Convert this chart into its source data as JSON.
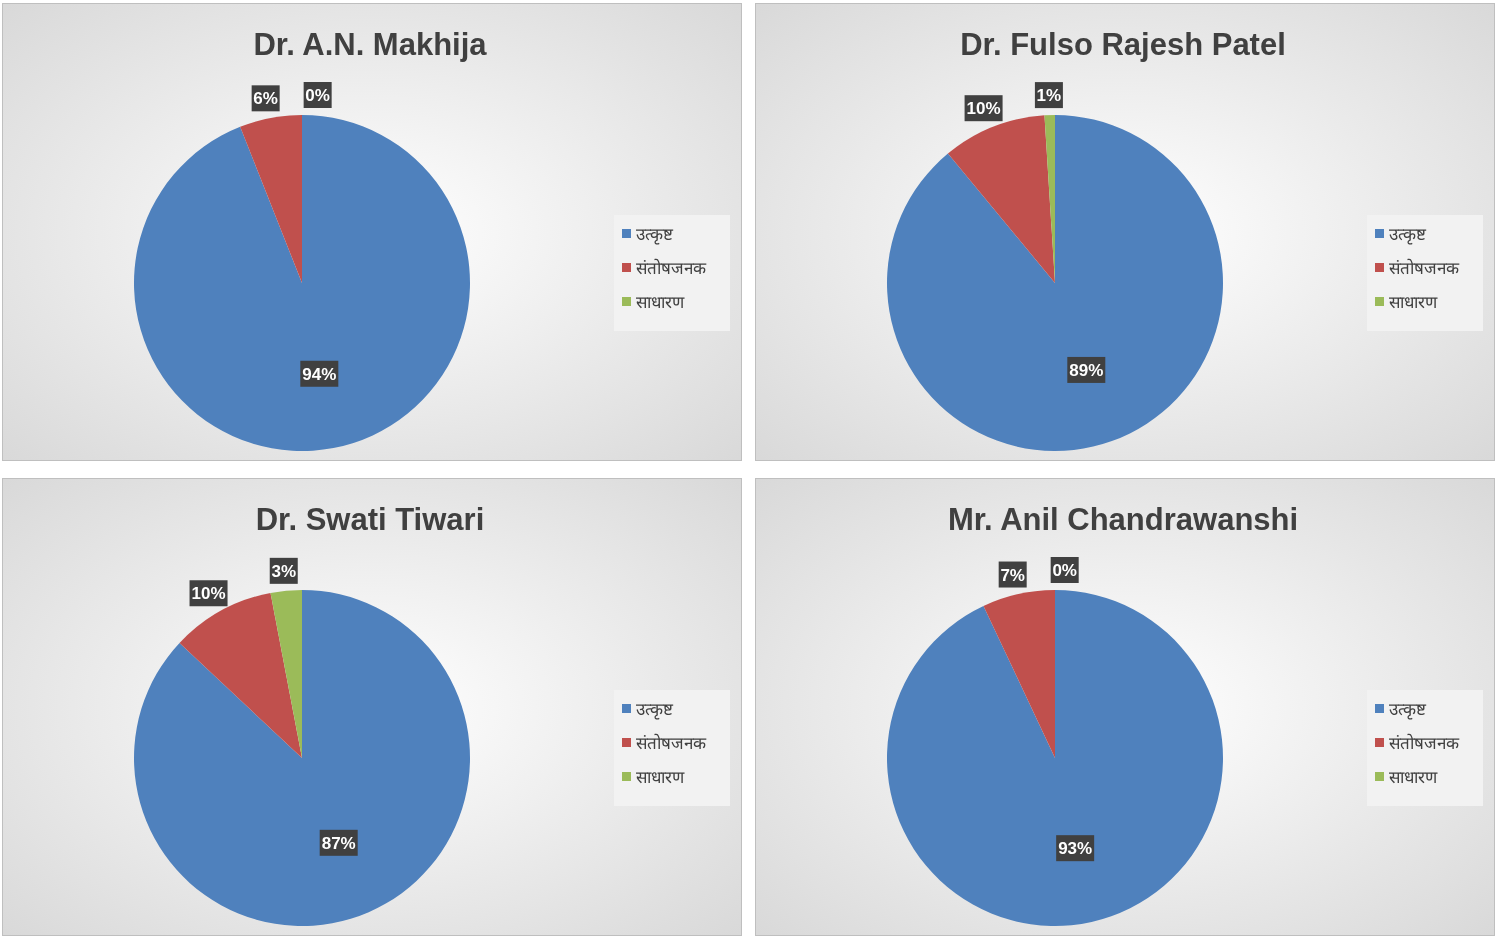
{
  "chart_data": [
    {
      "type": "pie",
      "title": "Dr. A.N. Makhija",
      "categories": [
        "उत्कृष्ट",
        "संतोषजनक",
        "साधारण"
      ],
      "values": [
        94,
        6,
        0
      ],
      "data_labels": true,
      "value_labels": [
        "94%",
        "6%",
        "0%"
      ],
      "colors": [
        "#4f81bd",
        "#c0504d",
        "#9bbb59"
      ],
      "legend": "right"
    },
    {
      "type": "pie",
      "title": "Dr. Fulso Rajesh Patel",
      "categories": [
        "उत्कृष्ट",
        "संतोषजनक",
        "साधारण"
      ],
      "values": [
        89,
        10,
        1
      ],
      "data_labels": true,
      "value_labels": [
        "89%",
        "10%",
        "1%"
      ],
      "colors": [
        "#4f81bd",
        "#c0504d",
        "#9bbb59"
      ],
      "legend": "right"
    },
    {
      "type": "pie",
      "title": "Dr. Swati Tiwari",
      "categories": [
        "उत्कृष्ट",
        "संतोषजनक",
        "साधारण"
      ],
      "values": [
        87,
        10,
        3
      ],
      "data_labels": true,
      "value_labels": [
        "87%",
        "10%",
        "3%"
      ],
      "colors": [
        "#4f81bd",
        "#c0504d",
        "#9bbb59"
      ],
      "legend": "right"
    },
    {
      "type": "pie",
      "title": "Mr. Anil Chandrawanshi",
      "categories": [
        "उत्कृष्ट",
        "संतोषजनक",
        "साधारण"
      ],
      "values": [
        93,
        7,
        0
      ],
      "data_labels": true,
      "value_labels": [
        "93%",
        "7%",
        "0%"
      ],
      "colors": [
        "#4f81bd",
        "#c0504d",
        "#9bbb59"
      ],
      "legend": "right"
    }
  ]
}
